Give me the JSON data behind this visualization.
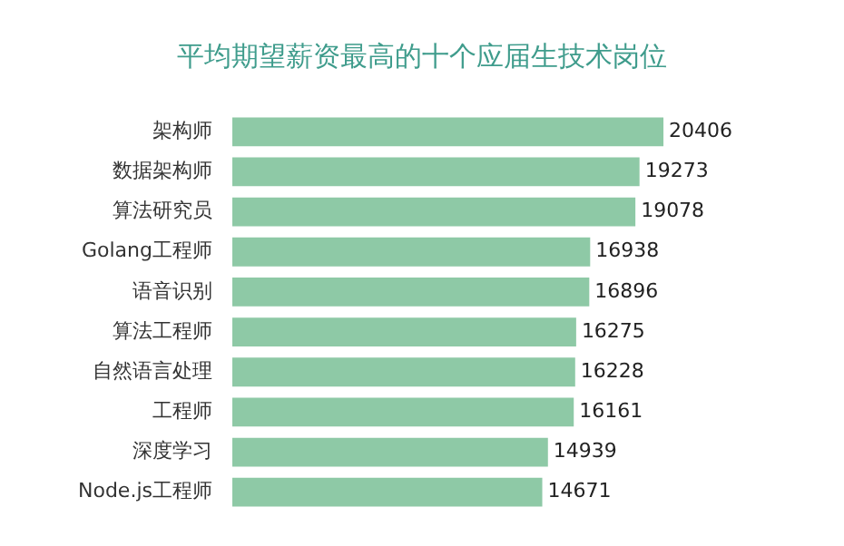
{
  "chart_data": {
    "type": "bar",
    "orientation": "horizontal",
    "title": "平均期望薪资最高的十个应届生技术岗位",
    "categories": [
      "架构师",
      "数据架构师",
      "算法研究员",
      "Golang工程师",
      "语音识别",
      "算法工程师",
      "自然语言处理",
      "工程师",
      "深度学习",
      "Node.js工程师"
    ],
    "values": [
      20406,
      19273,
      19078,
      16938,
      16896,
      16275,
      16228,
      16161,
      14939,
      14671
    ],
    "color": "#8ec9a6",
    "data_labels": true
  }
}
